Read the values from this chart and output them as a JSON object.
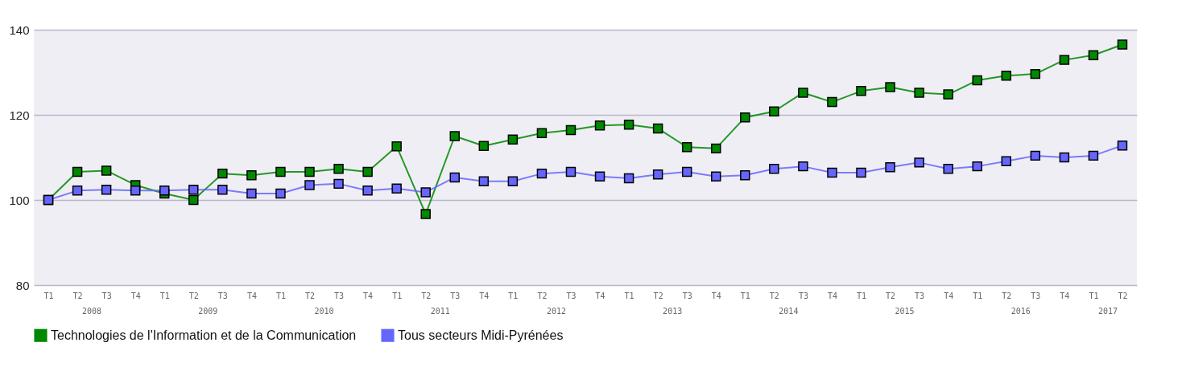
{
  "chart_data": {
    "type": "line",
    "categories": [
      "T1",
      "T2",
      "T3",
      "T4",
      "T1",
      "T2",
      "T3",
      "T4",
      "T1",
      "T2",
      "T3",
      "T4",
      "T1",
      "T2",
      "T3",
      "T4",
      "T1",
      "T2",
      "T3",
      "T4",
      "T1",
      "T2",
      "T3",
      "T4",
      "T1",
      "T2",
      "T3",
      "T4",
      "T1",
      "T2",
      "T3",
      "T4",
      "T1",
      "T2",
      "T3",
      "T4",
      "T1",
      "T2"
    ],
    "annotations": [
      "2008",
      "2009",
      "2010",
      "2011",
      "2012",
      "2013",
      "2014",
      "2015",
      "2016",
      "2017"
    ],
    "series": [
      {
        "name": "Technologies de l'Information et de la Communication",
        "color": "#008800",
        "values": [
          100,
          106.6,
          106.9,
          103.5,
          101.5,
          100,
          106.2,
          105.8,
          106.6,
          106.6,
          107.3,
          106.6,
          112.6,
          96.7,
          115,
          112.7,
          114.2,
          115.7,
          116.4,
          117.5,
          117.7,
          116.8,
          112.4,
          112.1,
          119.4,
          120.8,
          125.2,
          123,
          125.6,
          126.5,
          125.2,
          124.8,
          128.1,
          129.2,
          129.6,
          132.9,
          134,
          136.5
        ]
      },
      {
        "name": "Tous secteurs Midi-Pyrénées",
        "color": "#6666ff",
        "values": [
          100,
          102.2,
          102.4,
          102.2,
          102.2,
          102.4,
          102.4,
          101.5,
          101.5,
          103.5,
          103.8,
          102.2,
          102.7,
          101.8,
          105.3,
          104.4,
          104.4,
          106.2,
          106.6,
          105.5,
          105.1,
          106,
          106.6,
          105.5,
          105.8,
          107.3,
          107.9,
          106.4,
          106.4,
          107.7,
          108.8,
          107.3,
          107.9,
          109.1,
          110.4,
          110,
          110.4,
          112.8
        ]
      }
    ],
    "ylim": [
      80,
      140
    ],
    "yticks": [
      80,
      100,
      120,
      140
    ],
    "grid": "y",
    "legend": "bottom",
    "marker": "square",
    "line_style": "solid"
  }
}
